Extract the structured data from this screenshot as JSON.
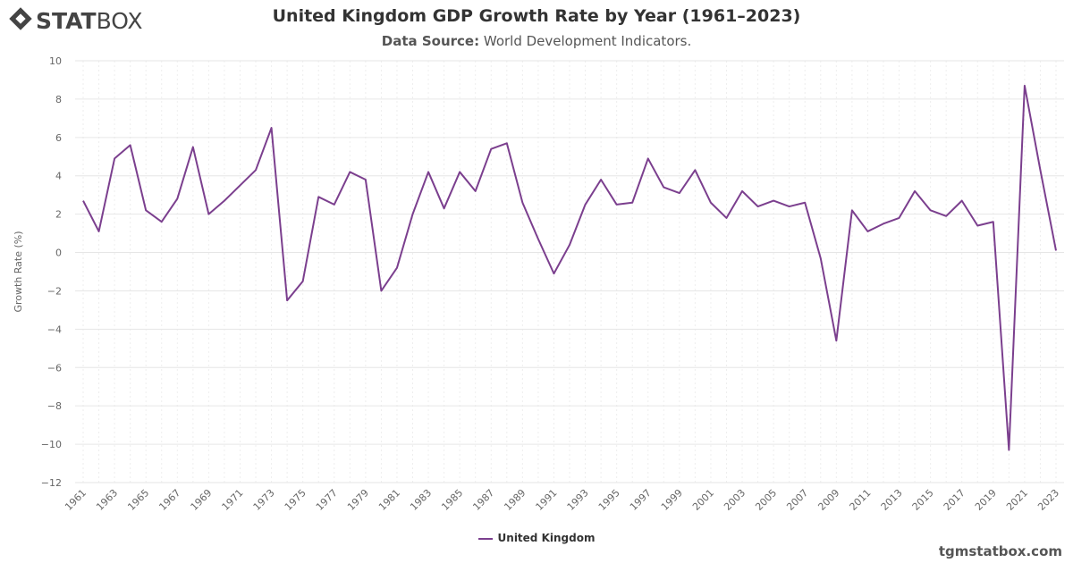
{
  "header": {
    "logo_text": "STATBOX",
    "title": "United Kingdom GDP Growth Rate by Year (1961–2023)",
    "subtitle_label": "Data Source:",
    "subtitle_value": "World Development Indicators."
  },
  "footer": {
    "site": "tgmstatbox.com"
  },
  "chart_data": {
    "type": "line",
    "title": "United Kingdom GDP Growth Rate by Year (1961–2023)",
    "ylabel": "Growth Rate (%)",
    "xlabel": "",
    "ylim": [
      -12,
      10
    ],
    "yticks": [
      10,
      8,
      6,
      4,
      2,
      0,
      -2,
      -4,
      -6,
      -8,
      -10,
      -12
    ],
    "xtick_labels": [
      "1961",
      "1963",
      "1965",
      "1967",
      "1969",
      "1971",
      "1973",
      "1975",
      "1977",
      "1979",
      "1981",
      "1983",
      "1985",
      "1987",
      "1989",
      "1991",
      "1993",
      "1995",
      "1997",
      "1999",
      "2001",
      "2003",
      "2005",
      "2007",
      "2009",
      "2011",
      "2013",
      "2015",
      "2017",
      "2019",
      "2021",
      "2023"
    ],
    "grid": true,
    "legend_position": "bottom",
    "color": "#7b3f8e",
    "x": [
      1961,
      1962,
      1963,
      1964,
      1965,
      1966,
      1967,
      1968,
      1969,
      1970,
      1971,
      1972,
      1973,
      1974,
      1975,
      1976,
      1977,
      1978,
      1979,
      1980,
      1981,
      1982,
      1983,
      1984,
      1985,
      1986,
      1987,
      1988,
      1989,
      1990,
      1991,
      1992,
      1993,
      1994,
      1995,
      1996,
      1997,
      1998,
      1999,
      2000,
      2001,
      2002,
      2003,
      2004,
      2005,
      2006,
      2007,
      2008,
      2009,
      2010,
      2011,
      2012,
      2013,
      2014,
      2015,
      2016,
      2017,
      2018,
      2019,
      2020,
      2021,
      2022,
      2023
    ],
    "series": [
      {
        "name": "United Kingdom",
        "values": [
          2.7,
          1.1,
          4.9,
          5.6,
          2.2,
          1.6,
          2.8,
          5.5,
          2.0,
          2.7,
          3.5,
          4.3,
          6.5,
          -2.5,
          -1.5,
          2.9,
          2.5,
          4.2,
          3.8,
          -2.0,
          -0.8,
          2.0,
          4.2,
          2.3,
          4.2,
          3.2,
          5.4,
          5.7,
          2.6,
          0.7,
          -1.1,
          0.4,
          2.5,
          3.8,
          2.5,
          2.6,
          4.9,
          3.4,
          3.1,
          4.3,
          2.6,
          1.8,
          3.2,
          2.4,
          2.7,
          2.4,
          2.6,
          -0.3,
          -4.6,
          2.2,
          1.1,
          1.5,
          1.8,
          3.2,
          2.2,
          1.9,
          2.7,
          1.4,
          1.6,
          -10.3,
          8.7,
          4.3,
          0.1
        ]
      }
    ]
  }
}
